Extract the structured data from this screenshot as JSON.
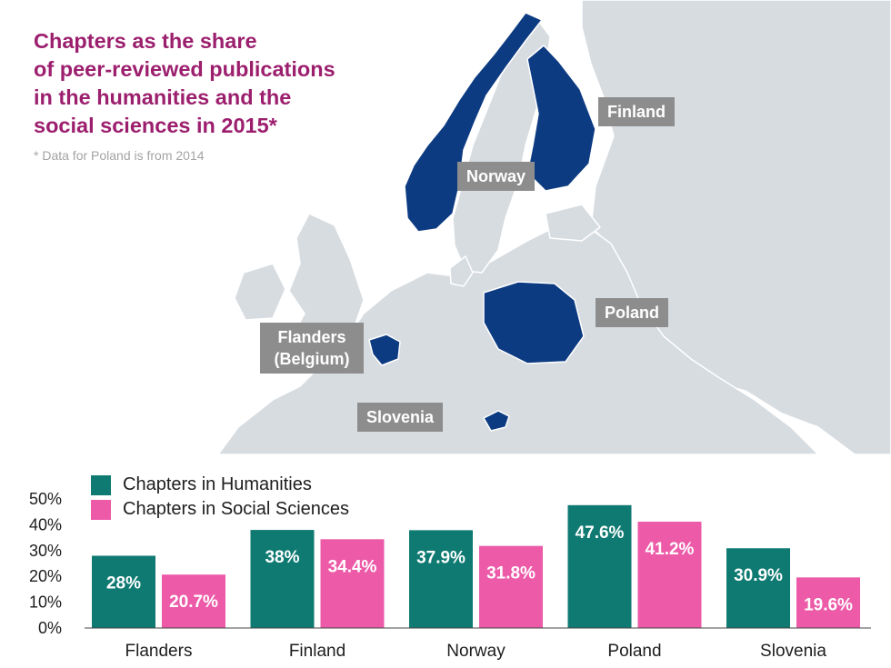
{
  "header": {
    "title_lines": [
      "Chapters as the share",
      "of peer-reviewed publications",
      "in the humanities and the",
      "social sciences in 2015*"
    ],
    "note": "* Data for Poland is from 2014"
  },
  "map_labels": {
    "finland": "Finland",
    "norway": "Norway",
    "poland": "Poland",
    "flanders_line1": "Flanders",
    "flanders_line2": "(Belgium)",
    "slovenia": "Slovenia"
  },
  "colors": {
    "title": "#9c1f6e",
    "humanities": "#0f7a72",
    "social_sciences": "#ec5aa8",
    "highlight_country": "#0c3b82",
    "land": "#d7dce1",
    "label_box": "#8d8d8d"
  },
  "chart_data": {
    "type": "bar",
    "categories": [
      "Flanders",
      "Finland",
      "Norway",
      "Poland",
      "Slovenia"
    ],
    "series": [
      {
        "name": "Chapters in Humanities",
        "values": [
          28,
          38,
          37.9,
          47.6,
          30.9
        ],
        "labels": [
          "28%",
          "38%",
          "37.9%",
          "47.6%",
          "30.9%"
        ]
      },
      {
        "name": "Chapters in Social Sciences",
        "values": [
          20.7,
          34.4,
          31.8,
          41.2,
          19.6
        ],
        "labels": [
          "20.7%",
          "34.4%",
          "31.8%",
          "41.2%",
          "19.6%"
        ]
      }
    ],
    "yticks": [
      0,
      10,
      20,
      30,
      40,
      50
    ],
    "ytick_labels": [
      "0%",
      "10%",
      "20%",
      "30%",
      "40%",
      "50%"
    ],
    "ylim": [
      0,
      50
    ],
    "grid": false,
    "legend_position": "top-left"
  }
}
